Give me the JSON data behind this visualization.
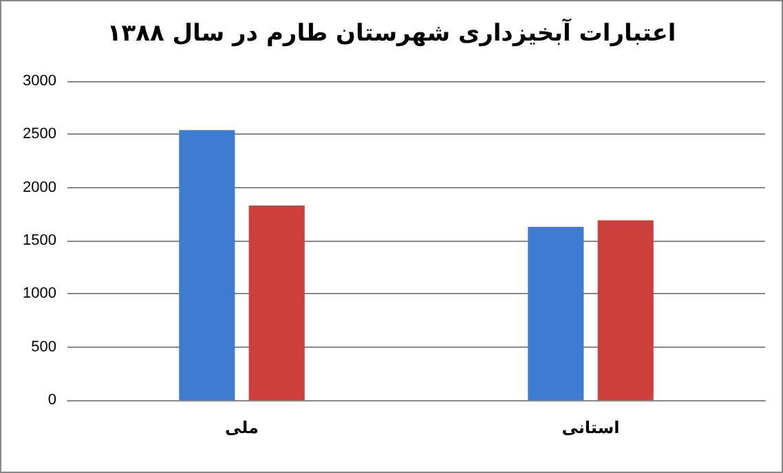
{
  "chart_data": {
    "type": "bar",
    "title": "اعتبارات آبخیزداری شهرستان طارم در سال ۱۳۸۸",
    "categories": [
      "ملی",
      "استانی"
    ],
    "series": [
      {
        "color": "#3f7bd0",
        "values": [
          2540,
          1630
        ]
      },
      {
        "color": "#cc3f3d",
        "values": [
          1830,
          1690
        ]
      }
    ],
    "ylim": [
      0,
      3000
    ],
    "yticks": [
      0,
      500,
      1000,
      1500,
      2000,
      2500,
      3000
    ],
    "grid": "y"
  }
}
